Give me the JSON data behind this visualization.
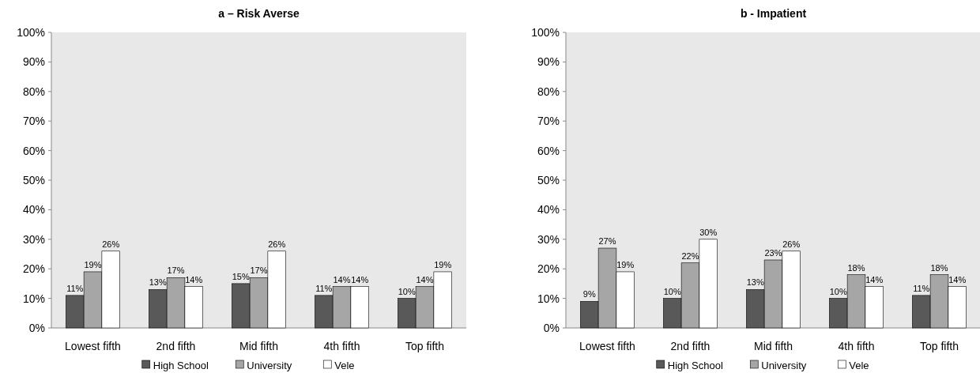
{
  "chart_data": [
    {
      "type": "bar",
      "title": "a – Risk Averse",
      "categories": [
        "Lowest fifth",
        "2nd fifth",
        "Mid fifth",
        "4th fifth",
        "Top fifth"
      ],
      "series": [
        {
          "name": "High School",
          "color": "#595959",
          "values": [
            11,
            13,
            15,
            11,
            10
          ],
          "value_labels": [
            "11%",
            "13%",
            "15%",
            "11%",
            "10%"
          ]
        },
        {
          "name": "University",
          "color": "#a6a6a6",
          "values": [
            19,
            17,
            17,
            14,
            14
          ],
          "value_labels": [
            "19%",
            "17%",
            "17%",
            "14%",
            "14%"
          ]
        },
        {
          "name": "Vele",
          "color": "#ffffff",
          "values": [
            26,
            14,
            26,
            14,
            19
          ],
          "value_labels": [
            "26%",
            "14%",
            "26%",
            "14%",
            "19%"
          ]
        }
      ],
      "ylim": [
        0,
        100
      ],
      "yticks": [
        {
          "value": 0,
          "label": "0%"
        },
        {
          "value": 10,
          "label": "10%"
        },
        {
          "value": 20,
          "label": "20%"
        },
        {
          "value": 30,
          "label": "30%"
        },
        {
          "value": 40,
          "label": "40%"
        },
        {
          "value": 50,
          "label": "50%"
        },
        {
          "value": 60,
          "label": "60%"
        },
        {
          "value": 70,
          "label": "70%"
        },
        {
          "value": 80,
          "label": "80%"
        },
        {
          "value": 90,
          "label": "90%"
        },
        {
          "value": 100,
          "label": "100%"
        }
      ],
      "grid": false,
      "legend": "bottom"
    },
    {
      "type": "bar",
      "title": "b - Impatient",
      "categories": [
        "Lowest fifth",
        "2nd fifth",
        "Mid fifth",
        "4th fifth",
        "Top fifth"
      ],
      "series": [
        {
          "name": "High School",
          "color": "#595959",
          "values": [
            9,
            10,
            13,
            10,
            11
          ],
          "value_labels": [
            "9%",
            "10%",
            "13%",
            "10%",
            "11%"
          ]
        },
        {
          "name": "University",
          "color": "#a6a6a6",
          "values": [
            27,
            22,
            23,
            18,
            18
          ],
          "value_labels": [
            "27%",
            "22%",
            "23%",
            "18%",
            "18%"
          ]
        },
        {
          "name": "Vele",
          "color": "#ffffff",
          "values": [
            19,
            30,
            26,
            14,
            14
          ],
          "value_labels": [
            "19%",
            "30%",
            "26%",
            "14%",
            "14%"
          ]
        }
      ],
      "ylim": [
        0,
        100
      ],
      "yticks": [
        {
          "value": 0,
          "label": "0%"
        },
        {
          "value": 10,
          "label": "10%"
        },
        {
          "value": 20,
          "label": "20%"
        },
        {
          "value": 30,
          "label": "30%"
        },
        {
          "value": 40,
          "label": "40%"
        },
        {
          "value": 50,
          "label": "50%"
        },
        {
          "value": 60,
          "label": "60%"
        },
        {
          "value": 70,
          "label": "70%"
        },
        {
          "value": 80,
          "label": "80%"
        },
        {
          "value": 90,
          "label": "90%"
        },
        {
          "value": 100,
          "label": "100%"
        }
      ],
      "grid": false,
      "legend": "bottom"
    }
  ]
}
